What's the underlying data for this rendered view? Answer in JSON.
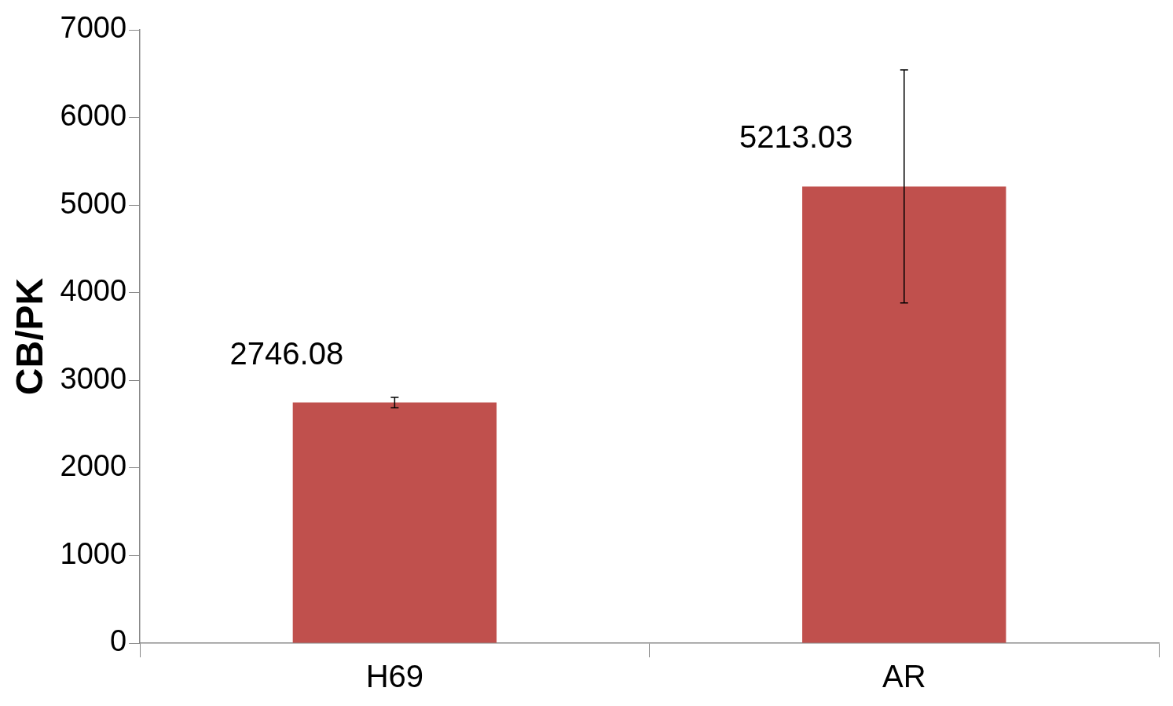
{
  "chart_data": {
    "type": "bar",
    "ylabel": "CB/PK",
    "categories": [
      "H69",
      "AR"
    ],
    "values": [
      2746.08,
      5213.03
    ],
    "errors": [
      60,
      1330
    ],
    "color": "#c0504d",
    "ylim": [
      0,
      7000
    ],
    "yticks": [
      0,
      1000,
      2000,
      3000,
      4000,
      5000,
      6000,
      7000
    ],
    "grid": false,
    "legend": false,
    "data_labels": true
  }
}
